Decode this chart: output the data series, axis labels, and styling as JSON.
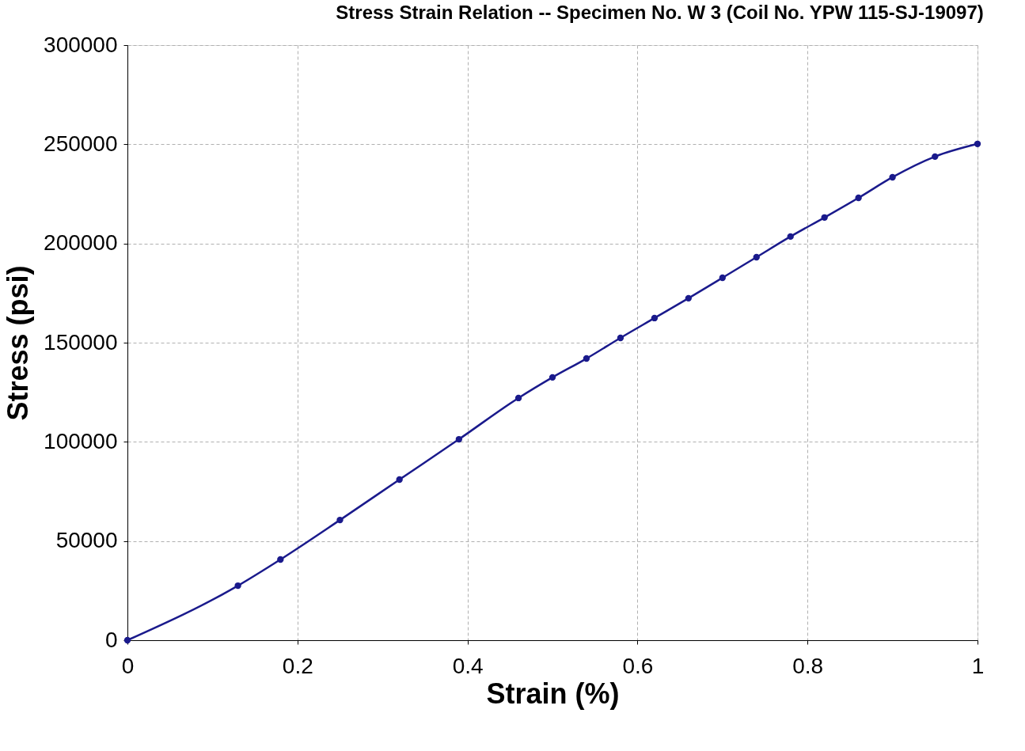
{
  "chart_data": {
    "type": "line",
    "title": "Stress Strain Relation -- Specimen No. W 3 (Coil No. YPW 115-SJ-19097)",
    "xlabel": "Strain (%)",
    "ylabel": "Stress (psi)",
    "x": [
      0,
      0.13,
      0.18,
      0.25,
      0.32,
      0.39,
      0.46,
      0.5,
      0.54,
      0.58,
      0.62,
      0.66,
      0.7,
      0.74,
      0.78,
      0.82,
      0.86,
      0.9,
      0.95,
      1.0
    ],
    "series": [
      {
        "color": "#1a1a8c",
        "values": [
          0,
          27500,
          40700,
          60600,
          81000,
          101300,
          122100,
          132500,
          142000,
          152400,
          162400,
          172400,
          182700,
          193100,
          203500,
          213100,
          223000,
          233400,
          243800,
          250200
        ]
      }
    ],
    "xlim": [
      0,
      1
    ],
    "xticks": [
      0,
      0.2,
      0.4,
      0.6,
      0.8,
      1
    ],
    "ylim": [
      0,
      300000
    ],
    "yticks": [
      0,
      50000,
      100000,
      150000,
      200000,
      250000,
      300000
    ],
    "grid": true,
    "marker": "circle",
    "line_style": "solid"
  }
}
